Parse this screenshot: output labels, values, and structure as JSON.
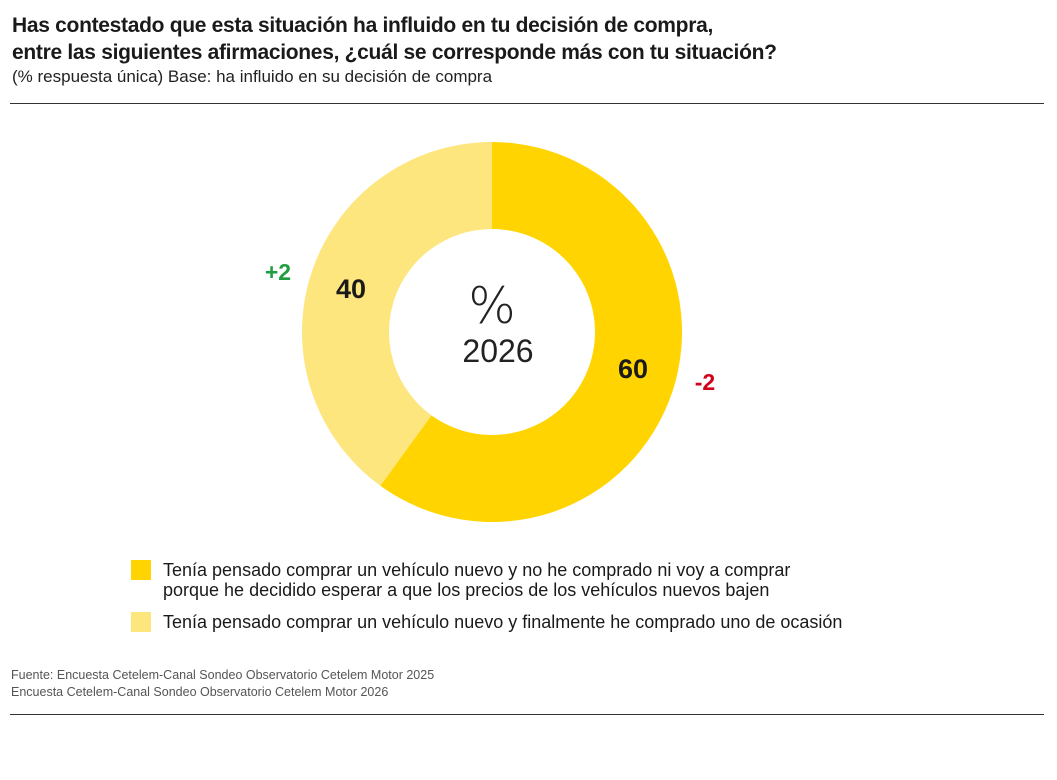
{
  "title": {
    "line1": "Has contestado que esta situación ha influido en tu decisión de compra,",
    "line2": "entre las siguientes afirmaciones, ¿cuál se corresponde más con tu situación?"
  },
  "subtitle": "(% respuesta única) Base:  ha influido en su decisión de compra",
  "chart_data": {
    "type": "pie",
    "donut": true,
    "center_label": {
      "symbol": "%",
      "year": "2026"
    },
    "series": [
      {
        "name": "Tenía pensado comprar un vehículo nuevo y no he comprado ni voy a comprar porque he decidido esperar a que los precios de los vehículos nuevos bajen",
        "value": 60,
        "label": "60",
        "change": "-2",
        "color": "#FFD400",
        "change_color": "#D0021B"
      },
      {
        "name": "Tenía pensado comprar un vehículo nuevo y finalmente he comprado uno de ocasión",
        "value": 40,
        "label": "40",
        "change": "+2",
        "color": "#FDE67E",
        "change_color": "#1E9E3E"
      }
    ],
    "legend_placement": "bottom"
  },
  "legend": [
    {
      "line1": "Tenía pensado comprar un vehículo nuevo y no he comprado ni voy a comprar",
      "line2": "porque he decidido esperar a que los precios de los vehículos nuevos bajen"
    },
    {
      "line1": "Tenía pensado comprar un vehículo nuevo y finalmente he comprado uno de ocasión"
    }
  ],
  "source": {
    "line1": "Fuente: Encuesta Cetelem-Canal Sondeo Observatorio Cetelem Motor 2025",
    "line2": "Encuesta Cetelem-Canal Sondeo Observatorio Cetelem Motor 2026"
  }
}
